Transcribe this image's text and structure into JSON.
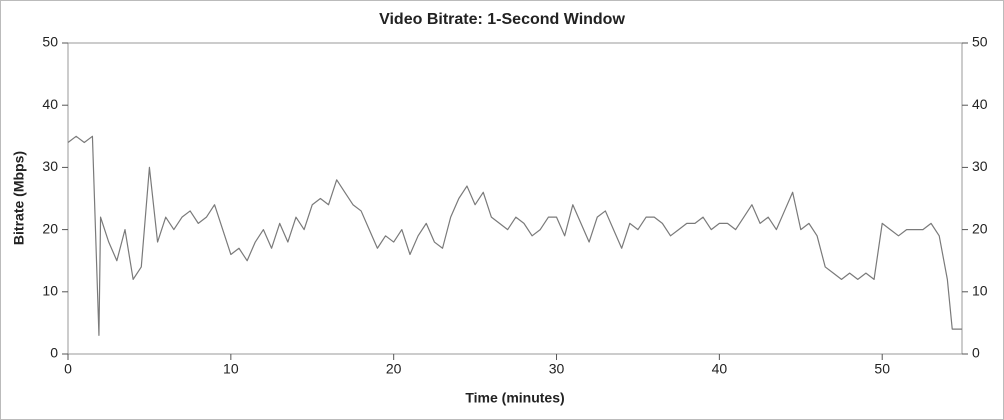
{
  "chart_data": {
    "type": "line",
    "title": "Video Bitrate: 1-Second Window",
    "x_label": "Time (minutes)",
    "y_label": "Bitrate (Mbps)",
    "x": [
      0,
      0.5,
      1,
      1.5,
      1.9,
      2,
      2.5,
      3,
      3.5,
      4,
      4.5,
      5,
      5.5,
      6,
      6.5,
      7,
      7.5,
      8,
      8.5,
      9,
      9.5,
      10,
      10.5,
      11,
      11.5,
      12,
      12.5,
      13,
      13.5,
      14,
      14.5,
      15,
      15.5,
      16,
      16.5,
      17,
      17.5,
      18,
      18.5,
      19,
      19.5,
      20,
      20.5,
      21,
      21.5,
      22,
      22.5,
      23,
      23.5,
      24,
      24.5,
      25,
      25.5,
      26,
      26.5,
      27,
      27.5,
      28,
      28.5,
      29,
      29.5,
      30,
      30.5,
      31,
      31.5,
      32,
      32.5,
      33,
      33.5,
      34,
      34.5,
      35,
      35.5,
      36,
      36.5,
      37,
      37.5,
      38,
      38.5,
      39,
      39.5,
      40,
      40.5,
      41,
      41.5,
      42,
      42.5,
      43,
      43.5,
      44,
      44.5,
      45,
      45.5,
      46,
      46.5,
      47,
      47.5,
      48,
      48.5,
      49,
      49.5,
      50,
      50.5,
      51,
      51.5,
      52,
      52.5,
      53,
      53.5,
      54,
      54.3,
      54.9
    ],
    "series": [
      {
        "name": "Bitrate",
        "color": "#7a7a7a",
        "values": [
          34,
          35,
          34,
          35,
          3,
          22,
          18,
          15,
          20,
          12,
          14,
          30,
          18,
          22,
          20,
          22,
          23,
          21,
          22,
          24,
          20,
          16,
          17,
          15,
          18,
          20,
          17,
          21,
          18,
          22,
          20,
          24,
          25,
          24,
          28,
          26,
          24,
          23,
          20,
          17,
          19,
          18,
          20,
          16,
          19,
          21,
          18,
          17,
          22,
          25,
          27,
          24,
          26,
          22,
          21,
          20,
          22,
          21,
          19,
          20,
          22,
          22,
          19,
          24,
          21,
          18,
          22,
          23,
          20,
          17,
          21,
          20,
          22,
          22,
          21,
          19,
          20,
          21,
          21,
          22,
          20,
          21,
          21,
          20,
          22,
          24,
          21,
          22,
          20,
          23,
          26,
          20,
          21,
          19,
          14,
          13,
          12,
          13,
          12,
          13,
          12,
          21,
          20,
          19,
          20,
          20,
          20,
          21,
          19,
          12,
          4,
          4
        ]
      }
    ],
    "xlim": [
      0,
      54.9
    ],
    "xticks": [
      0,
      10,
      20,
      30,
      40,
      50
    ],
    "ylim": [
      0,
      50
    ],
    "yticks": [
      0,
      10,
      20,
      30,
      40,
      50
    ],
    "y2lim": [
      0,
      50
    ],
    "y2ticks": [
      0,
      10,
      20,
      30,
      40,
      50
    ]
  }
}
